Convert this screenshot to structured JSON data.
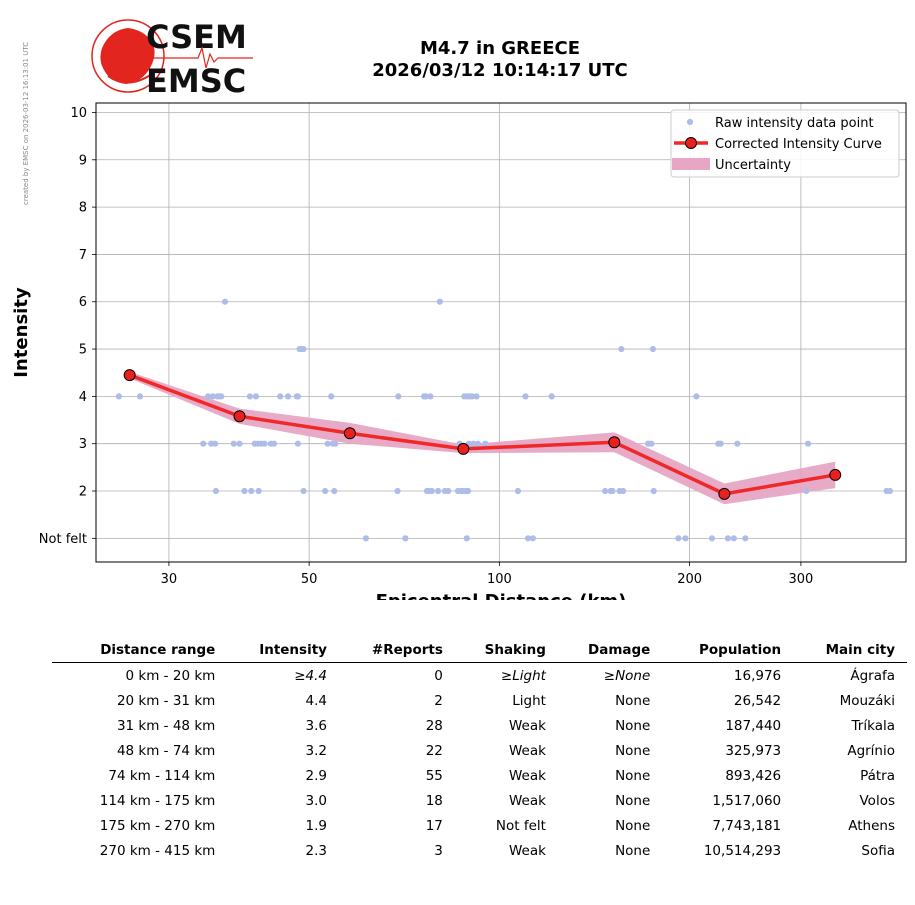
{
  "watermark": "created by EMSC on 2026-03-12 16:13:01 UTC",
  "logo": {
    "line1": "CSEM",
    "line2": "EMSC"
  },
  "title": {
    "line1": "M4.7 in GREECE",
    "line2": "2026/03/12 10:14:17 UTC"
  },
  "colors": {
    "raw": "#aebce8",
    "curve": "#f0282a",
    "marker": "#e8201e",
    "band": "#e7a6c4"
  },
  "chart_data": {
    "type": "scatter",
    "xlabel": "Epicentral Distance (km)",
    "ylabel": "Intensity",
    "xscale": "log",
    "xlim": [
      23,
      440
    ],
    "ylim": [
      0.5,
      10.2
    ],
    "xticks": [
      30,
      50,
      100,
      200,
      300
    ],
    "yticks": [
      1,
      2,
      3,
      4,
      5,
      6,
      7,
      8,
      9,
      10
    ],
    "ytick_labels": [
      "Not felt",
      "2",
      "3",
      "4",
      "5",
      "6",
      "7",
      "8",
      "9",
      "10"
    ],
    "grid": true,
    "legend": {
      "placement": "top-right",
      "entries": [
        "Raw intensity data point",
        "Corrected Intensity Curve",
        "Uncertainty"
      ]
    },
    "series": [
      {
        "name": "Raw intensity data point",
        "points": [
          [
            25,
            4
          ],
          [
            27,
            4
          ],
          [
            34,
            3
          ],
          [
            34.6,
            4
          ],
          [
            35,
            3
          ],
          [
            35.2,
            4
          ],
          [
            35.5,
            3
          ],
          [
            35.6,
            2
          ],
          [
            35.8,
            4
          ],
          [
            36,
            4
          ],
          [
            36.3,
            4
          ],
          [
            36.8,
            6
          ],
          [
            38,
            3
          ],
          [
            38.8,
            3
          ],
          [
            39.5,
            2
          ],
          [
            40.3,
            4
          ],
          [
            40.5,
            2
          ],
          [
            41,
            3
          ],
          [
            41.2,
            4
          ],
          [
            41.5,
            3
          ],
          [
            41.6,
            2
          ],
          [
            42,
            3
          ],
          [
            42.5,
            3
          ],
          [
            43.5,
            3
          ],
          [
            44,
            3
          ],
          [
            45,
            4
          ],
          [
            46.3,
            4
          ],
          [
            47.8,
            4
          ],
          [
            48,
            3
          ],
          [
            48,
            4
          ],
          [
            48.3,
            5
          ],
          [
            48.6,
            5
          ],
          [
            49,
            5
          ],
          [
            49,
            2
          ],
          [
            53,
            2
          ],
          [
            53.5,
            3
          ],
          [
            54.2,
            4
          ],
          [
            54.5,
            3
          ],
          [
            54.8,
            2
          ],
          [
            55,
            3
          ],
          [
            61.5,
            1
          ],
          [
            69,
            2
          ],
          [
            69.2,
            4
          ],
          [
            71,
            1
          ],
          [
            76,
            4
          ],
          [
            76.5,
            4
          ],
          [
            76.8,
            2
          ],
          [
            77,
            2
          ],
          [
            77.3,
            2
          ],
          [
            77.8,
            4
          ],
          [
            78.2,
            2
          ],
          [
            80,
            2
          ],
          [
            80.5,
            6
          ],
          [
            82,
            2
          ],
          [
            83,
            2
          ],
          [
            86,
            2
          ],
          [
            86.5,
            3
          ],
          [
            87,
            2
          ],
          [
            87.5,
            2
          ],
          [
            88,
            4
          ],
          [
            88.5,
            2
          ],
          [
            88.8,
            1
          ],
          [
            89,
            4
          ],
          [
            89.2,
            2
          ],
          [
            89.5,
            3
          ],
          [
            89.8,
            4
          ],
          [
            90.5,
            4
          ],
          [
            91,
            3
          ],
          [
            92,
            4
          ],
          [
            92.5,
            3
          ],
          [
            95,
            3
          ],
          [
            107,
            2
          ],
          [
            110,
            4
          ],
          [
            111,
            1
          ],
          [
            113,
            1
          ],
          [
            121,
            4
          ],
          [
            147,
            2
          ],
          [
            150,
            2
          ],
          [
            151,
            2
          ],
          [
            155,
            2
          ],
          [
            156,
            5
          ],
          [
            157,
            2
          ],
          [
            172,
            3
          ],
          [
            174,
            3
          ],
          [
            175,
            5
          ],
          [
            175.5,
            2
          ],
          [
            192,
            1
          ],
          [
            197,
            1
          ],
          [
            205,
            4
          ],
          [
            217,
            1
          ],
          [
            222,
            3
          ],
          [
            224,
            3
          ],
          [
            230,
            1
          ],
          [
            235,
            1
          ],
          [
            238,
            3
          ],
          [
            245,
            1
          ],
          [
            306,
            2
          ],
          [
            308,
            3
          ],
          [
            410,
            2
          ],
          [
            415,
            2
          ]
        ]
      },
      {
        "name": "Corrected Intensity Curve",
        "points": [
          [
            26,
            4.45
          ],
          [
            38.8,
            3.58
          ],
          [
            58,
            3.22
          ],
          [
            87.7,
            2.89
          ],
          [
            152,
            3.03
          ],
          [
            227,
            1.94
          ],
          [
            340,
            2.34
          ]
        ]
      },
      {
        "name": "Uncertainty",
        "lower": [
          [
            26,
            4.38
          ],
          [
            38.8,
            3.42
          ],
          [
            58,
            3.0
          ],
          [
            87.7,
            2.8
          ],
          [
            152,
            2.82
          ],
          [
            227,
            1.72
          ],
          [
            340,
            2.06
          ]
        ],
        "upper": [
          [
            26,
            4.52
          ],
          [
            38.8,
            3.74
          ],
          [
            58,
            3.44
          ],
          [
            87.7,
            2.98
          ],
          [
            152,
            3.24
          ],
          [
            227,
            2.16
          ],
          [
            340,
            2.62
          ]
        ]
      }
    ]
  },
  "table": {
    "headers": [
      "Distance range",
      "Intensity",
      "#Reports",
      "Shaking",
      "Damage",
      "Population",
      "Main city"
    ],
    "rows": [
      [
        "0 km -   20 km",
        "≥4.4",
        "0",
        "≥Light",
        "≥None",
        "16,976",
        "Ágrafa"
      ],
      [
        "20 km -   31 km",
        "4.4",
        "2",
        "Light",
        "None",
        "26,542",
        "Mouzáki"
      ],
      [
        "31 km -   48 km",
        "3.6",
        "28",
        "Weak",
        "None",
        "187,440",
        "Tríkala"
      ],
      [
        "48 km -   74 km",
        "3.2",
        "22",
        "Weak",
        "None",
        "325,973",
        "Agrínio"
      ],
      [
        "74 km -  114 km",
        "2.9",
        "55",
        "Weak",
        "None",
        "893,426",
        "Pátra"
      ],
      [
        "114 km -  175 km",
        "3.0",
        "18",
        "Weak",
        "None",
        "1,517,060",
        "Volos"
      ],
      [
        "175 km -  270 km",
        "1.9",
        "17",
        "Not felt",
        "None",
        "7,743,181",
        "Athens"
      ],
      [
        "270 km -  415 km",
        "2.3",
        "3",
        "Weak",
        "None",
        "10,514,293",
        "Sofia"
      ]
    ]
  }
}
